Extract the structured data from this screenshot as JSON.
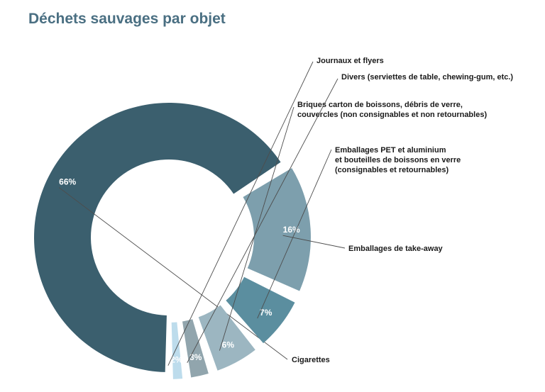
{
  "chart_data": {
    "type": "pie",
    "variant": "donut-exploded",
    "title": "Déchets sauvages par objet",
    "unit": "%",
    "series": [
      {
        "values": [
          66,
          16,
          7,
          6,
          3,
          2
        ]
      }
    ],
    "slices": [
      {
        "pct_label": "66%",
        "label_lines": [
          "Cigarettes"
        ],
        "value": 66,
        "color": "#3b5f6e"
      },
      {
        "pct_label": "16%",
        "label_lines": [
          "Emballages de take-away"
        ],
        "value": 16,
        "color": "#7d9fad"
      },
      {
        "pct_label": "7%",
        "label_lines": [
          "Emballages PET et aluminium",
          "et bouteilles de boissons en verre",
          "(consignables et retournables)"
        ],
        "value": 7,
        "color": "#5b8e9f"
      },
      {
        "pct_label": "6%",
        "label_lines": [
          "Briques carton de boissons, débris de verre,",
          "couvercles (non consignables et non retournables)"
        ],
        "value": 6,
        "color": "#9cb6c1"
      },
      {
        "pct_label": "3%",
        "label_lines": [
          "Divers (serviettes de table, chewing-gum, etc.)"
        ],
        "value": 3,
        "color": "#91a5ad"
      },
      {
        "pct_label": "2%",
        "label_lines": [
          "Journaux et flyers"
        ],
        "value": 2,
        "color": "#bddcec"
      }
    ]
  }
}
